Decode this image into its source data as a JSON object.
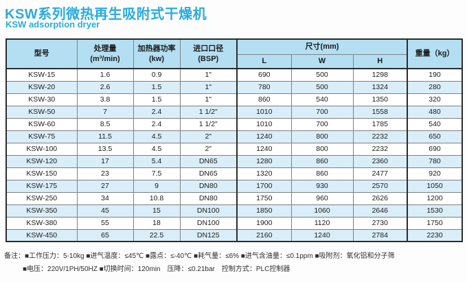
{
  "header": {
    "title_zh": "KSW系列微热再生吸附式干燥机",
    "title_en": "KSW adsorption dryer"
  },
  "table": {
    "headers": {
      "model": "型号",
      "capacity_l1": "处理量",
      "capacity_l2": "(m³/min)",
      "heater_l1": "加热器功率",
      "heater_l2": "(kw)",
      "inlet_l1": "进口口径",
      "inlet_l2": "(BSP)",
      "dimensions": "尺寸(mm)",
      "dim_l": "L",
      "dim_w": "W",
      "dim_h": "H",
      "weight": "重量（kg）"
    },
    "col_keys": [
      "model",
      "capacity",
      "heater-power",
      "inlet-size",
      "dim-l",
      "dim-w",
      "dim-h",
      "weight"
    ],
    "rows": [
      [
        "KSW-15",
        "1.6",
        "0.9",
        "1\"",
        "690",
        "500",
        "1298",
        "190"
      ],
      [
        "KSW-20",
        "2.6",
        "1.5",
        "1\"",
        "780",
        "500",
        "1324",
        "280"
      ],
      [
        "KSW-30",
        "3.8",
        "1.5",
        "1\"",
        "860",
        "540",
        "1350",
        "320"
      ],
      [
        "KSW-50",
        "7",
        "2.4",
        "1 1/2\"",
        "1010",
        "700",
        "1558",
        "480"
      ],
      [
        "KSW-60",
        "8.5",
        "2.4",
        "1 1/2\"",
        "1010",
        "700",
        "1785",
        "540"
      ],
      [
        "KSW-75",
        "11.5",
        "4.5",
        "2\"",
        "1240",
        "800",
        "2232",
        "650"
      ],
      [
        "KSW-100",
        "13.5",
        "4.5",
        "2\"",
        "1240",
        "800",
        "2232",
        "690"
      ],
      [
        "KSW-120",
        "17",
        "5.4",
        "DN65",
        "1280",
        "860",
        "2360",
        "780"
      ],
      [
        "KSW-150",
        "23",
        "7.5",
        "DN65",
        "1320",
        "860",
        "2477",
        "920"
      ],
      [
        "KSW-175",
        "27",
        "9",
        "DN80",
        "1700",
        "930",
        "2570",
        "1050"
      ],
      [
        "KSW-250",
        "34",
        "10.8",
        "DN80",
        "1750",
        "960",
        "2626",
        "1200"
      ],
      [
        "KSW-350",
        "45",
        "15",
        "DN100",
        "1850",
        "1060",
        "2646",
        "1530"
      ],
      [
        "KSW-380",
        "55",
        "18",
        "DN100",
        "1900",
        "1120",
        "2730",
        "1750"
      ],
      [
        "KSW-450",
        "65",
        "22.5",
        "DN125",
        "2160",
        "1240",
        "2784",
        "2230"
      ]
    ]
  },
  "notes": {
    "label": "备注：",
    "line1": "■工作压力：5-10kg ■进气温度：≤45℃ ■露点：≤-40℃ ■耗气量：≤6% ■进气含油量：≤0.1ppm ■吸附剂：氧化铝和分子筛",
    "line2": "■电压：220V/1PH/50HZ ■切换时间：120min　压降：≤0.21bar　控制方式：PLC控制器"
  },
  "colors": {
    "title": "#29abe2",
    "header_bg": "#b4dff2",
    "stripe_bg": "#daeef9",
    "border_dark": "#2b2b2b",
    "border_inner": "#7f7f7f"
  }
}
